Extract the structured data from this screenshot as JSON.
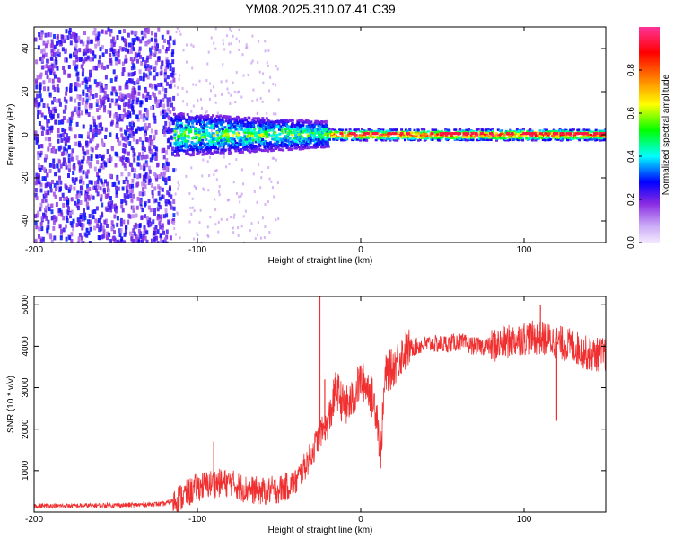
{
  "title": "YM08.2025.310.07.41.C39",
  "chart_data": [
    {
      "type": "heatmap",
      "name": "spectrogram",
      "xlabel": "Height of straight line (km)",
      "ylabel": "Frequency (Hz)",
      "xlim": [
        -200,
        150
      ],
      "ylim": [
        -50,
        50
      ],
      "xticks": [
        -200,
        -100,
        0,
        100
      ],
      "xtick_labels": [
        "-200",
        "-100",
        "0",
        "100"
      ],
      "yticks": [
        -40,
        -20,
        0,
        20,
        40
      ],
      "ytick_labels": [
        "-40",
        "-20",
        "0",
        "20",
        "40"
      ],
      "colorbar": {
        "label": "Normalized spectral amplitude",
        "range": [
          0,
          1
        ],
        "ticks": [
          0.0,
          0.2,
          0.4,
          0.6,
          0.8
        ],
        "tick_labels": [
          "0.0",
          "0.2",
          "0.4",
          "0.6",
          "0.8"
        ],
        "colormap": [
          "#e8d8f8",
          "#8a2be2",
          "#0000ff",
          "#00ffff",
          "#00ff00",
          "#ffff00",
          "#ff8000",
          "#ff0000",
          "#ff3399"
        ]
      },
      "regions": [
        {
          "x_range": [
            -200,
            -115
          ],
          "freq_range": [
            -50,
            50
          ],
          "amplitude": 0.1,
          "description_level": "sparse low"
        },
        {
          "x_range": [
            -115,
            -20
          ],
          "freq_range": [
            -8,
            8
          ],
          "amplitude": 0.35,
          "description_level": "medium"
        },
        {
          "x_range": [
            -20,
            150
          ],
          "freq_range": [
            -2,
            2
          ],
          "amplitude": 0.9,
          "description_level": "narrow high"
        }
      ]
    },
    {
      "type": "line",
      "name": "snr",
      "xlabel": "Height of straight line (km)",
      "ylabel": "SNR (10 * v/v)",
      "xlim": [
        -200,
        150
      ],
      "ylim": [
        0,
        5200
      ],
      "xticks": [
        -200,
        -100,
        0,
        100
      ],
      "xtick_labels": [
        "-200",
        "-100",
        "0",
        "100"
      ],
      "yticks": [
        1000,
        2000,
        3000,
        4000,
        5000
      ],
      "ytick_labels": [
        "1000",
        "2000",
        "3000",
        "4000",
        "5000"
      ],
      "color": "#f03030",
      "x": [
        -200,
        -180,
        -160,
        -140,
        -120,
        -110,
        -100,
        -90,
        -80,
        -70,
        -60,
        -50,
        -40,
        -30,
        -25,
        -20,
        -15,
        -10,
        -5,
        0,
        5,
        10,
        12,
        15,
        20,
        25,
        30,
        40,
        50,
        60,
        70,
        80,
        90,
        100,
        110,
        120,
        130,
        140,
        150
      ],
      "y": [
        150,
        150,
        160,
        170,
        200,
        350,
        600,
        700,
        700,
        550,
        500,
        550,
        700,
        1400,
        1900,
        2100,
        3000,
        2500,
        2700,
        3200,
        3000,
        2400,
        1300,
        3300,
        3500,
        3800,
        3950,
        4050,
        4050,
        4100,
        4000,
        4000,
        4100,
        4200,
        4200,
        4100,
        4000,
        3800,
        3800
      ],
      "spikes": [
        {
          "x": -25,
          "y": 5200
        },
        {
          "x": -22,
          "y": 3200
        },
        {
          "x": -90,
          "y": 1700
        },
        {
          "x": 120,
          "y": 2200
        },
        {
          "x": 110,
          "y": 5000
        }
      ]
    }
  ]
}
